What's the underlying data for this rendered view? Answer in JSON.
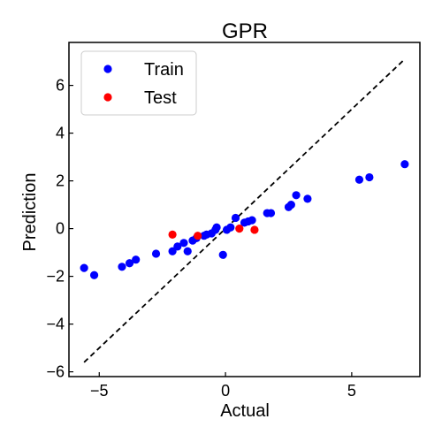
{
  "chart_data": {
    "type": "scatter",
    "title": "GPR",
    "xlabel": "Actual",
    "ylabel": "Prediction",
    "xlim": [
      -6.2,
      7.7
    ],
    "ylim": [
      -6.2,
      7.8
    ],
    "xticks": [
      -5,
      0,
      5
    ],
    "yticks": [
      -6,
      -4,
      -2,
      0,
      2,
      4,
      6
    ],
    "xtick_labels": [
      "−5",
      "0",
      "5"
    ],
    "ytick_labels": [
      "−6",
      "−4",
      "−2",
      "0",
      "2",
      "4",
      "6"
    ],
    "grid": false,
    "legend": "top-left",
    "reference_line": {
      "style": "dashed",
      "color": "#000000",
      "x": [
        -5.6,
        7.1
      ],
      "y": [
        -5.6,
        7.1
      ]
    },
    "series": [
      {
        "name": "Train",
        "color": "#0000ff",
        "points": [
          [
            -5.6,
            -1.65
          ],
          [
            -5.2,
            -1.95
          ],
          [
            -4.1,
            -1.6
          ],
          [
            -3.8,
            -1.45
          ],
          [
            -3.55,
            -1.3
          ],
          [
            -2.75,
            -1.05
          ],
          [
            -2.1,
            -0.95
          ],
          [
            -1.9,
            -0.75
          ],
          [
            -1.65,
            -0.6
          ],
          [
            -1.5,
            -0.95
          ],
          [
            -1.3,
            -0.5
          ],
          [
            -1.15,
            -0.4
          ],
          [
            -0.85,
            -0.3
          ],
          [
            -0.75,
            -0.25
          ],
          [
            -0.55,
            -0.2
          ],
          [
            -0.4,
            -0.05
          ],
          [
            -0.35,
            0.05
          ],
          [
            -0.1,
            -1.1
          ],
          [
            0.05,
            -0.05
          ],
          [
            0.2,
            0.05
          ],
          [
            0.4,
            0.45
          ],
          [
            0.75,
            0.25
          ],
          [
            0.9,
            0.3
          ],
          [
            1.05,
            0.35
          ],
          [
            1.65,
            0.65
          ],
          [
            1.8,
            0.65
          ],
          [
            2.5,
            0.9
          ],
          [
            2.6,
            1.0
          ],
          [
            2.8,
            1.4
          ],
          [
            3.25,
            1.25
          ],
          [
            5.3,
            2.05
          ],
          [
            5.7,
            2.15
          ],
          [
            7.1,
            2.7
          ]
        ]
      },
      {
        "name": "Test",
        "color": "#ff0000",
        "points": [
          [
            -2.1,
            -0.25
          ],
          [
            -1.1,
            -0.3
          ],
          [
            0.55,
            0.0
          ],
          [
            1.15,
            -0.05
          ]
        ]
      }
    ]
  }
}
